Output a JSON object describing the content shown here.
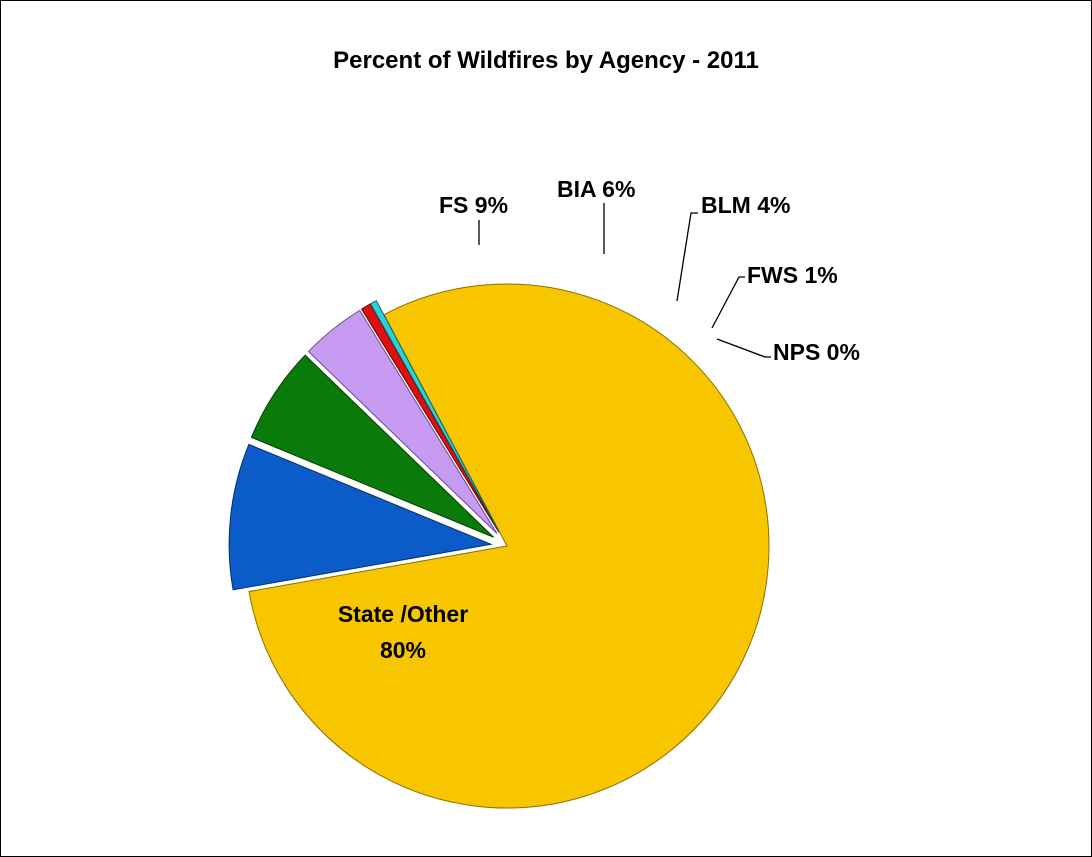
{
  "chart_data": {
    "type": "pie",
    "title": "Percent of Wildfires by Agency - 2011",
    "slices": [
      {
        "name": "State /Other",
        "label_line1": "State /Other",
        "label_line2": "80%",
        "value": 80,
        "color": "#F7C600",
        "exploded": false
      },
      {
        "name": "FS",
        "label": "FS 9%",
        "value": 9,
        "color": "#0B5CC8",
        "exploded": true
      },
      {
        "name": "BIA",
        "label": "BIA 6%",
        "value": 6,
        "color": "#0A7A0A",
        "exploded": true
      },
      {
        "name": "BLM",
        "label": "BLM 4%",
        "value": 4,
        "color": "#C89BF2",
        "exploded": true
      },
      {
        "name": "FWS",
        "label": "FWS 1%",
        "value": 0.6,
        "color": "#E01010",
        "exploded": true
      },
      {
        "name": "NPS",
        "label": "NPS 0%",
        "value": 0.4,
        "color": "#2FD0D8",
        "exploded": true
      }
    ]
  }
}
